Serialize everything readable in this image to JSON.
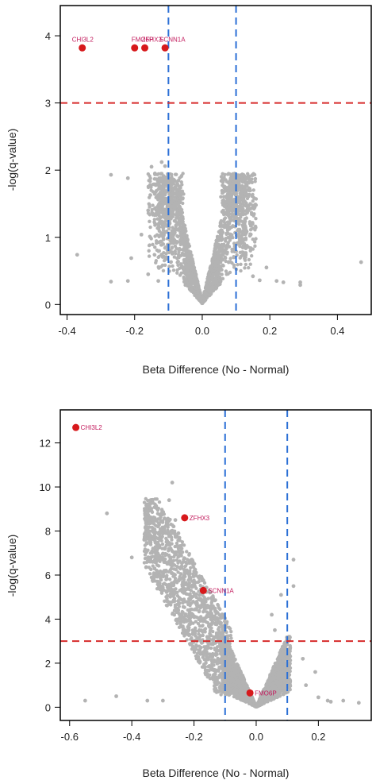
{
  "colors": {
    "points": "#b3b3b3",
    "highlight": "#d7191c",
    "highlight_text": "#c2185b",
    "vline": "#2b6fd6",
    "hline": "#d62b2b",
    "frame": "#000000"
  },
  "chart_data": [
    {
      "type": "scatter",
      "xlabel": "Beta Difference (No - Normal)",
      "ylabel": "-log(q-value)",
      "xlim": [
        -0.42,
        0.5
      ],
      "ylim": [
        -0.15,
        4.45
      ],
      "xticks": [
        "-0.4",
        "-0.2",
        "0.0",
        "0.2",
        "0.4"
      ],
      "xtick_values": [
        -0.4,
        -0.2,
        0.0,
        0.2,
        0.4
      ],
      "yticks": [
        "0",
        "1",
        "2",
        "3",
        "4"
      ],
      "ytick_values": [
        0,
        1,
        2,
        3,
        4
      ],
      "vlines": [
        -0.1,
        0.1
      ],
      "hline": 3,
      "grid": false,
      "highlighted_genes": [
        {
          "label": "CHI3L2",
          "x": -0.355,
          "y": 3.82
        },
        {
          "label": "FMO6P",
          "x": -0.2,
          "y": 3.82
        },
        {
          "label": "ZFHX3",
          "x": -0.17,
          "y": 3.82
        },
        {
          "label": "SCNN1A",
          "x": -0.11,
          "y": 3.82
        }
      ],
      "scattered_points": [
        [
          -0.37,
          0.74
        ],
        [
          -0.27,
          1.93
        ],
        [
          -0.27,
          0.34
        ],
        [
          -0.22,
          1.88
        ],
        [
          -0.21,
          0.69
        ],
        [
          -0.22,
          0.35
        ],
        [
          -0.18,
          1.04
        ],
        [
          -0.14,
          1.95
        ],
        [
          -0.15,
          2.05
        ],
        [
          -0.16,
          1.4
        ],
        [
          -0.12,
          2.12
        ],
        [
          -0.11,
          2.06
        ],
        [
          -0.13,
          1.63
        ],
        [
          -0.16,
          0.45
        ],
        [
          -0.13,
          0.35
        ],
        [
          0.15,
          0.42
        ],
        [
          0.17,
          0.36
        ],
        [
          0.22,
          0.35
        ],
        [
          0.24,
          0.33
        ],
        [
          0.29,
          0.33
        ],
        [
          0.29,
          0.29
        ],
        [
          0.47,
          0.63
        ],
        [
          0.19,
          0.55
        ],
        [
          0.13,
          1.1
        ],
        [
          0.12,
          1.7
        ]
      ]
    },
    {
      "type": "scatter",
      "xlabel": "Beta Difference (No - Normal)",
      "ylabel": "-log(q-value)",
      "xlim": [
        -0.63,
        0.37
      ],
      "ylim": [
        -0.6,
        13.5
      ],
      "xticks": [
        "-0.6",
        "-0.4",
        "-0.2",
        "0.0",
        "0.2"
      ],
      "xtick_values": [
        -0.6,
        -0.4,
        -0.2,
        0.0,
        0.2
      ],
      "yticks": [
        "0",
        "2",
        "4",
        "6",
        "8",
        "10",
        "12"
      ],
      "ytick_values": [
        0,
        2,
        4,
        6,
        8,
        10,
        12
      ],
      "vlines": [
        -0.1,
        0.1
      ],
      "hline": 3,
      "grid": false,
      "highlighted_genes": [
        {
          "label": "CHI3L2",
          "x": -0.58,
          "y": 12.7
        },
        {
          "label": "ZFHX3",
          "x": -0.23,
          "y": 8.6
        },
        {
          "label": "SCNN1A",
          "x": -0.17,
          "y": 5.3
        },
        {
          "label": "FMO6P",
          "x": -0.02,
          "y": 0.65
        }
      ],
      "scattered_points": [
        [
          -0.48,
          8.8
        ],
        [
          -0.27,
          10.2
        ],
        [
          -0.36,
          7.6
        ],
        [
          -0.4,
          6.8
        ],
        [
          -0.32,
          6.2
        ],
        [
          -0.28,
          9.4
        ],
        [
          -0.26,
          8.5
        ],
        [
          -0.25,
          7.9
        ],
        [
          0.12,
          6.7
        ],
        [
          0.12,
          5.5
        ],
        [
          0.08,
          5.1
        ],
        [
          0.16,
          1.0
        ],
        [
          0.2,
          0.45
        ],
        [
          0.23,
          0.3
        ],
        [
          0.24,
          0.25
        ],
        [
          0.33,
          0.2
        ],
        [
          0.28,
          0.3
        ],
        [
          0.15,
          2.2
        ],
        [
          0.19,
          1.6
        ],
        [
          -0.35,
          0.3
        ],
        [
          -0.3,
          0.3
        ],
        [
          -0.45,
          0.5
        ],
        [
          -0.55,
          0.3
        ],
        [
          0.06,
          3.5
        ],
        [
          0.05,
          4.2
        ]
      ]
    }
  ]
}
